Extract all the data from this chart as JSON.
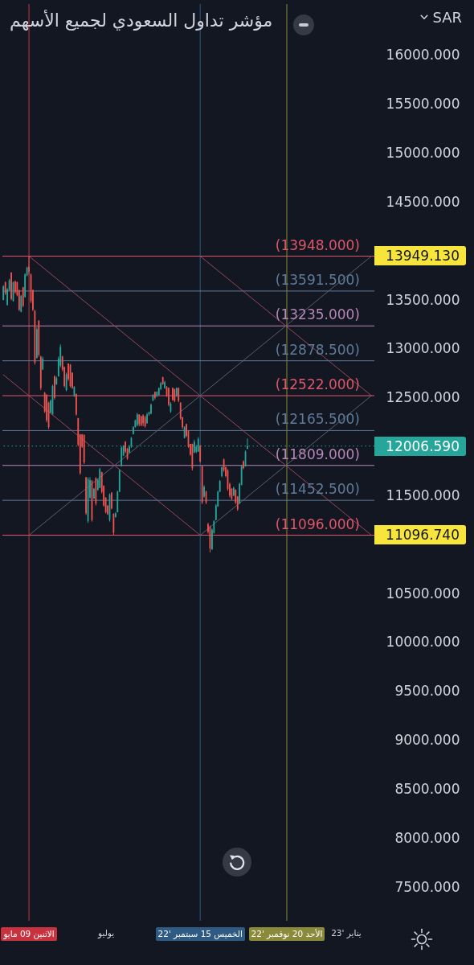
{
  "chart_data": {
    "type": "candlestick",
    "title": "مؤشر تداول السعودي لجميع الأسهم",
    "ylabel": "SAR",
    "categories": [
      null,
      null,
      null,
      null,
      null,
      null,
      null,
      null,
      null,
      null,
      null,
      null,
      null,
      "الاثنين 09 مايو",
      null,
      null,
      null,
      null,
      null,
      null,
      null,
      null,
      null,
      null,
      null,
      null,
      null,
      null,
      null,
      null,
      null,
      null,
      null,
      null,
      null,
      null,
      null,
      null,
      null,
      null,
      null,
      null,
      null,
      null,
      null,
      null,
      null,
      null,
      null,
      null,
      null,
      null,
      "يوليو",
      null,
      null,
      null,
      null,
      null,
      null,
      null,
      null,
      null,
      null,
      null,
      null,
      null,
      null,
      null,
      null,
      null,
      null,
      null,
      null,
      null,
      null,
      null,
      null,
      null,
      null,
      null,
      null,
      null,
      null,
      null,
      null,
      null,
      null,
      null,
      null,
      null,
      null,
      null,
      null,
      null,
      null,
      null,
      null,
      null,
      null,
      null,
      "الخميس 15 سبتمبر '22",
      null,
      null,
      null,
      null,
      null,
      null,
      null,
      null,
      null,
      null,
      null,
      null,
      null,
      null,
      null,
      null,
      null,
      null,
      null,
      null,
      null,
      null,
      null,
      null,
      null,
      null,
      null,
      null,
      null,
      null,
      null,
      null,
      null,
      null,
      null,
      null,
      null,
      null,
      null,
      null,
      null,
      null,
      null,
      "الأحد 20 نوفمبر '22",
      null,
      null,
      null,
      null,
      null,
      null,
      null,
      null,
      null,
      null,
      null,
      null,
      null,
      null,
      null,
      null,
      null,
      null,
      null,
      null,
      null,
      null,
      null,
      null,
      null,
      null,
      null,
      null,
      null,
      "يناير '23",
      null,
      null,
      null,
      null,
      null,
      null,
      null,
      null,
      null,
      null,
      null,
      null,
      null,
      null
    ],
    "ohlc": [
      [
        13500,
        13650,
        13497,
        13640
      ],
      [
        13680,
        13689,
        13552,
        13570
      ],
      [
        13450,
        13620,
        13442,
        13610
      ],
      [
        13600,
        13716,
        13593,
        13700
      ],
      [
        13780,
        13785,
        13497,
        13510
      ],
      [
        13490,
        13689,
        13483,
        13680
      ],
      [
        13690,
        13700,
        13566,
        13580
      ],
      [
        13680,
        13689,
        13538,
        13550
      ],
      [
        13600,
        13607,
        13387,
        13400
      ],
      [
        13380,
        13552,
        13374,
        13540
      ],
      [
        13630,
        13634,
        13428,
        13440
      ],
      [
        13530,
        13771,
        13524,
        13760
      ],
      [
        13750,
        13840,
        13744,
        13830
      ],
      [
        13840,
        13949.13,
        13760,
        13790
      ],
      [
        13760,
        13771,
        13470,
        13490
      ],
      [
        13600,
        13607,
        13387,
        13400
      ],
      [
        13387,
        13400,
        12839,
        12860
      ],
      [
        12910,
        13223,
        12900,
        13200
      ],
      [
        13290,
        13292,
        12921,
        12940
      ],
      [
        12921,
        12930,
        12579,
        12600
      ],
      [
        12790,
        12921,
        12784,
        12900
      ],
      [
        12551,
        12560,
        12346,
        12360
      ],
      [
        12530,
        12538,
        12250,
        12270
      ],
      [
        12450,
        12460,
        12181,
        12200
      ],
      [
        12350,
        12483,
        12346,
        12470
      ],
      [
        12330,
        12634,
        12330,
        12620
      ],
      [
        12720,
        12730,
        12483,
        12500
      ],
      [
        12640,
        12716,
        12633,
        12700
      ],
      [
        12720,
        12921,
        12716,
        12900
      ],
      [
        12830,
        13045,
        12812,
        13020
      ],
      [
        12921,
        12930,
        12771,
        12790
      ],
      [
        12812,
        12820,
        12606,
        12620
      ],
      [
        12580,
        12757,
        12565,
        12740
      ],
      [
        12850,
        12853,
        12675,
        12690
      ],
      [
        12839,
        12845,
        12606,
        12620
      ],
      [
        12757,
        12760,
        12592,
        12600
      ],
      [
        12520,
        12620,
        12510,
        12610
      ],
      [
        12538,
        12545,
        12318,
        12330
      ],
      [
        12291,
        12295,
        12003,
        12020
      ],
      [
        12126,
        12130,
        11715,
        11730
      ],
      [
        12126,
        12130,
        11989,
        12000
      ],
      [
        12120,
        12126,
        11825,
        11840
      ],
      [
        11688,
        11690,
        11304,
        11320
      ],
      [
        11240,
        11688,
        11222,
        11670
      ],
      [
        11480,
        11688,
        11469,
        11660
      ],
      [
        11650,
        11660,
        11235,
        11250
      ],
      [
        11470,
        11578,
        11469,
        11570
      ],
      [
        11680,
        11688,
        11400,
        11420
      ],
      [
        11560,
        11675,
        11550,
        11660
      ],
      [
        11580,
        11784,
        11578,
        11770
      ],
      [
        11740,
        11743,
        11523,
        11540
      ],
      [
        11600,
        11606,
        11387,
        11400
      ],
      [
        11480,
        11483,
        11318,
        11330
      ],
      [
        11400,
        11400,
        11304,
        11310
      ],
      [
        11250,
        11523,
        11235,
        11510
      ],
      [
        11530,
        11537,
        11360,
        11370
      ],
      [
        11315,
        11320,
        11096.74,
        11120
      ],
      [
        11280,
        11332,
        11277,
        11320
      ],
      [
        11330,
        11551,
        11330,
        11540
      ],
      [
        11540,
        11770,
        11537,
        11760
      ],
      [
        11800,
        12003,
        11798,
        11990
      ],
      [
        11910,
        12017,
        11907,
        12010
      ],
      [
        12050,
        12058,
        11935,
        11950
      ],
      [
        11980,
        11989,
        11866,
        11880
      ],
      [
        11940,
        12017,
        11935,
        12000
      ],
      [
        12000,
        12099,
        11989,
        12090
      ],
      [
        12130,
        12209,
        12126,
        12200
      ],
      [
        12200,
        12277,
        12195,
        12270
      ],
      [
        12220,
        12346,
        12209,
        12330
      ],
      [
        12330,
        12332,
        12209,
        12230
      ],
      [
        12310,
        12318,
        12209,
        12220
      ],
      [
        12320,
        12332,
        12209,
        12240
      ],
      [
        12300,
        12318,
        12195,
        12210
      ],
      [
        12240,
        12346,
        12236,
        12330
      ],
      [
        12330,
        12360,
        12318,
        12350
      ],
      [
        12340,
        12442,
        12332,
        12430
      ],
      [
        12470,
        12538,
        12469,
        12530
      ],
      [
        12560,
        12565,
        12483,
        12500
      ],
      [
        12520,
        12565,
        12510,
        12560
      ],
      [
        12530,
        12606,
        12524,
        12600
      ],
      [
        12590,
        12661,
        12579,
        12650
      ],
      [
        12710,
        12716,
        12633,
        12640
      ],
      [
        12600,
        12675,
        12592,
        12660
      ],
      [
        12610,
        12620,
        12510,
        12520
      ],
      [
        12600,
        12606,
        12414,
        12430
      ],
      [
        12360,
        12455,
        12346,
        12440
      ],
      [
        12600,
        12606,
        12469,
        12480
      ],
      [
        12590,
        12592,
        12455,
        12470
      ],
      [
        12520,
        12606,
        12510,
        12600
      ],
      [
        12600,
        12606,
        12455,
        12470
      ],
      [
        12450,
        12455,
        12277,
        12290
      ],
      [
        12300,
        12305,
        12181,
        12200
      ],
      [
        12090,
        12209,
        12085,
        12200
      ],
      [
        12230,
        12236,
        12099,
        12110
      ],
      [
        12160,
        12168,
        11989,
        12000
      ],
      [
        12030,
        12030,
        11907,
        11920
      ],
      [
        12030,
        12031,
        11757,
        11780
      ],
      [
        11940,
        12072,
        11935,
        12050
      ],
      [
        11950,
        12017,
        11935,
        12000
      ],
      [
        11950,
        12099,
        11948,
        12080
      ],
      [
        12010,
        12017,
        11839,
        11850
      ],
      [
        11800,
        11811,
        11414,
        11430
      ],
      [
        11490,
        11606,
        11480,
        11590
      ],
      [
        11540,
        11551,
        11414,
        11430
      ],
      [
        11210,
        11222,
        11112,
        11130
      ],
      [
        11180,
        11195,
        10920,
        10960
      ],
      [
        10950,
        11167,
        10948,
        11150
      ],
      [
        11120,
        11249,
        11112,
        11240
      ],
      [
        11250,
        11414,
        11249,
        11400
      ],
      [
        11390,
        11551,
        11386,
        11540
      ],
      [
        11540,
        11660,
        11537,
        11650
      ],
      [
        11700,
        11798,
        11688,
        11790
      ],
      [
        11870,
        11880,
        11743,
        11760
      ],
      [
        11790,
        11798,
        11688,
        11700
      ],
      [
        11760,
        11770,
        11551,
        11570
      ],
      [
        11620,
        11633,
        11482,
        11500
      ],
      [
        11570,
        11578,
        11455,
        11470
      ],
      [
        11500,
        11592,
        11496,
        11580
      ],
      [
        11560,
        11565,
        11414,
        11430
      ],
      [
        11490,
        11496,
        11345,
        11360
      ],
      [
        11420,
        11633,
        11414,
        11620
      ],
      [
        11610,
        11811,
        11606,
        11800
      ],
      [
        11850,
        11860,
        11770,
        11780
      ],
      [
        11800,
        11962,
        11797,
        11950
      ],
      [
        11980,
        12085,
        11975,
        12006.59
      ],
      null,
      null,
      null,
      null,
      null,
      null,
      null,
      null,
      null,
      null,
      null,
      null,
      null,
      null,
      null,
      null,
      null,
      null,
      null,
      null,
      null,
      null,
      null,
      null,
      null,
      null,
      null,
      null,
      null,
      null,
      null,
      null,
      null,
      null,
      null,
      null,
      null,
      null,
      null,
      null,
      null,
      null,
      null,
      null,
      null,
      null,
      null,
      null,
      null,
      null,
      null,
      null,
      null,
      null,
      null,
      null,
      null,
      null,
      null,
      null,
      null,
      null,
      null,
      null
    ],
    "ylim": [
      7155,
      16525
    ],
    "yticks": [
      {
        "value": 16000,
        "label": "16000.000"
      },
      {
        "value": 15500,
        "label": "15500.000"
      },
      {
        "value": 15000,
        "label": "15000.000"
      },
      {
        "value": 14500,
        "label": "14500.000"
      },
      {
        "value": 13949.13,
        "label": "13949.130"
      },
      {
        "value": 13500,
        "label": "13500.000"
      },
      {
        "value": 13000,
        "label": "13000.000"
      },
      {
        "value": 12500,
        "label": "12500.000"
      },
      {
        "value": 12006.59,
        "label": "12006.590"
      },
      {
        "value": 11500,
        "label": "11500.000"
      },
      {
        "value": 11096.74,
        "label": "11096.740"
      },
      {
        "value": 10500,
        "label": "10500.000"
      },
      {
        "value": 10000,
        "label": "10000.000"
      },
      {
        "value": 9500,
        "label": "9500.000"
      },
      {
        "value": 9000,
        "label": "9000.000"
      },
      {
        "value": 8500,
        "label": "8500.000"
      },
      {
        "value": 8000,
        "label": "8000.000"
      },
      {
        "value": 7500,
        "label": "7500.000"
      }
    ],
    "series": [
      {
        "type": "line",
        "color": "#9e4a60",
        "values": [
          null,
          null,
          null,
          null,
          null,
          null,
          null,
          null,
          null,
          null,
          null,
          null,
          null,
          13948,
          13932,
          13915,
          13899,
          13882,
          13866,
          13850,
          13833,
          13817,
          13800,
          13784,
          13768,
          13751,
          13735,
          13719,
          13702,
          13686,
          13669,
          13653,
          13637,
          13620,
          13604,
          13587,
          13571,
          13555,
          13538,
          13522,
          13505,
          13489,
          13473,
          13456,
          13440,
          13423,
          13407,
          13391,
          13374,
          13358,
          13342,
          13325,
          13309,
          13292,
          13276,
          13260,
          13243,
          13227,
          13210,
          13194,
          13178,
          13161,
          13145,
          13128,
          13112,
          13096,
          13079,
          13063,
          13047,
          13030,
          13014,
          12997,
          12981,
          12965,
          12948,
          12932,
          12915,
          12899,
          12883,
          12866,
          12850,
          12833,
          12817,
          12801,
          12784,
          12768,
          12751,
          12735,
          12719,
          12702,
          12686,
          12670,
          12653,
          12637,
          12620,
          12604,
          12588,
          12571,
          12555,
          12538,
          12522,
          12506,
          12489,
          12473,
          12456,
          12440,
          12424,
          12407,
          12391,
          12374,
          12358,
          12342,
          12325,
          12309,
          12293,
          12276,
          12260,
          12243,
          12227,
          12211,
          12194,
          12178,
          12161,
          12145,
          12129,
          12112,
          12096,
          12079,
          12063,
          12047,
          12030,
          12014,
          11997,
          11981,
          11965,
          11948,
          11932,
          11916,
          11899,
          11883,
          11866,
          11850,
          11834,
          11817,
          11801,
          11784,
          11768,
          11752,
          11735,
          11719,
          11702,
          11686,
          11670,
          11653,
          11637,
          11621,
          11604,
          11588,
          11571,
          11555,
          11539,
          11522,
          11506,
          11489,
          11473,
          11457,
          11440,
          11424,
          11407,
          11391,
          11375,
          11358,
          11342,
          11325,
          11309,
          11293,
          11276,
          11260,
          11244,
          11227,
          11211,
          11194,
          11178,
          11162,
          11145,
          11129,
          11112,
          11096,
          null
        ]
      },
      {
        "type": "line",
        "color": "#5c6272",
        "values": [
          null,
          null,
          null,
          null,
          null,
          null,
          null,
          null,
          null,
          null,
          null,
          null,
          null,
          11096,
          11112,
          11129,
          11145,
          11162,
          11178,
          11194,
          11211,
          11227,
          11244,
          11260,
          11276,
          11293,
          11309,
          11325,
          11342,
          11358,
          11375,
          11391,
          11407,
          11424,
          11440,
          11457,
          11473,
          11489,
          11506,
          11522,
          11539,
          11555,
          11571,
          11588,
          11604,
          11621,
          11637,
          11653,
          11670,
          11686,
          11702,
          11719,
          11735,
          11752,
          11768,
          11784,
          11801,
          11817,
          11834,
          11850,
          11866,
          11883,
          11899,
          11916,
          11932,
          11948,
          11965,
          11981,
          11997,
          12014,
          12030,
          12047,
          12063,
          12079,
          12096,
          12112,
          12129,
          12145,
          12161,
          12178,
          12194,
          12211,
          12227,
          12243,
          12260,
          12276,
          12293,
          12309,
          12325,
          12342,
          12358,
          12374,
          12391,
          12407,
          12424,
          12440,
          12456,
          12473,
          12489,
          12506,
          12522,
          12538,
          12555,
          12571,
          12588,
          12604,
          12620,
          12637,
          12653,
          12670,
          12686,
          12702,
          12719,
          12735,
          12751,
          12768,
          12784,
          12801,
          12817,
          12833,
          12850,
          12866,
          12883,
          12899,
          12915,
          12932,
          12948,
          12965,
          12981,
          12997,
          13014,
          13030,
          13047,
          13063,
          13079,
          13096,
          13112,
          13128,
          13145,
          13161,
          13178,
          13194,
          13210,
          13227,
          13243,
          13260,
          13276,
          13292,
          13309,
          13325,
          13342,
          13358,
          13374,
          13391,
          13407,
          13423,
          13440,
          13456,
          13473,
          13489,
          13505,
          13522,
          13538,
          13555,
          13571,
          13587,
          13604,
          13620,
          13637,
          13653,
          13669,
          13686,
          13702,
          13719,
          13735,
          13751,
          13768,
          13784,
          13800,
          13817,
          13833,
          13850,
          13866,
          13882,
          13899,
          13915,
          13932,
          13948,
          null
        ]
      },
      {
        "type": "line",
        "color": "#9e4a60",
        "values": [
          12735,
          12719,
          12702,
          12686,
          12669,
          12653,
          12637,
          12620,
          12604,
          12587,
          12571,
          12555,
          12538,
          12522,
          12506,
          12489,
          12473,
          12456,
          12440,
          12424,
          12407,
          12391,
          12374,
          12358,
          12342,
          12325,
          12309,
          12292,
          12276,
          12260,
          12243,
          12227,
          12210,
          12194,
          12178,
          12161,
          12145,
          12129,
          12112,
          12096,
          12079,
          12063,
          12047,
          12030,
          12014,
          11997,
          11981,
          11965,
          11948,
          11932,
          11915,
          11899,
          11883,
          11866,
          11850,
          11834,
          11817,
          11801,
          11784,
          11768,
          11752,
          11735,
          11719,
          11702,
          11686,
          11670,
          11653,
          11637,
          11620,
          11604,
          11588,
          11571,
          11555,
          11538,
          11522,
          11506,
          11489,
          11473,
          11457,
          11440,
          11424,
          11407,
          11391,
          11375,
          11358,
          11342,
          11325,
          11309,
          11293,
          11276,
          11260,
          11243,
          11227,
          11211,
          11194,
          11178,
          11161,
          11145,
          11129,
          11112,
          11096,
          null,
          null,
          null,
          null,
          null,
          null,
          null,
          null,
          null,
          null,
          null,
          null,
          null,
          null,
          null,
          null,
          null,
          null,
          null,
          null,
          null,
          null,
          null,
          null,
          null,
          null,
          null,
          null,
          null,
          null,
          null,
          null,
          null,
          null,
          null,
          null,
          null,
          null,
          null,
          null,
          null,
          null,
          null,
          null,
          null,
          null,
          null,
          null,
          null,
          null,
          null,
          null,
          null,
          null,
          null,
          null,
          null,
          null,
          null,
          null,
          null,
          null,
          null,
          null,
          null,
          null,
          null,
          null,
          null,
          null,
          null,
          null,
          null,
          null,
          null,
          null,
          null,
          null,
          null,
          null,
          null,
          null,
          null,
          null,
          null,
          null,
          null,
          null
        ]
      },
      {
        "type": "line",
        "color": "#5c6272",
        "values": [
          null,
          null,
          null,
          null,
          null,
          null,
          null,
          null,
          null,
          null,
          null,
          null,
          null,
          null,
          null,
          null,
          null,
          null,
          null,
          null,
          null,
          null,
          null,
          null,
          null,
          null,
          null,
          null,
          null,
          null,
          null,
          null,
          null,
          null,
          null,
          null,
          null,
          null,
          null,
          null,
          null,
          null,
          null,
          null,
          null,
          null,
          null,
          null,
          null,
          null,
          null,
          null,
          null,
          null,
          null,
          null,
          null,
          null,
          null,
          null,
          null,
          null,
          null,
          null,
          null,
          null,
          null,
          null,
          null,
          null,
          null,
          null,
          null,
          null,
          null,
          null,
          null,
          null,
          null,
          null,
          null,
          null,
          null,
          null,
          null,
          null,
          null,
          null,
          null,
          null,
          null,
          null,
          null,
          null,
          null,
          null,
          null,
          null,
          null,
          null,
          11096,
          11112,
          11129,
          11145,
          11162,
          11178,
          11194,
          11211,
          11227,
          11244,
          11260,
          11276,
          11293,
          11309,
          11325,
          11342,
          11358,
          11375,
          11391,
          11407,
          11424,
          11440,
          11457,
          11473,
          11489,
          11506,
          11522,
          11539,
          11555,
          11571,
          11588,
          11604,
          11621,
          11637,
          11653,
          11670,
          11686,
          11702,
          11719,
          11735,
          11752,
          11768,
          11784,
          11801,
          11817,
          11834,
          11850,
          11866,
          11883,
          11899,
          11916,
          11932,
          11948,
          11965,
          11981,
          11997,
          12014,
          12030,
          12047,
          12063,
          12079,
          12096,
          12112,
          12129,
          12145,
          12161,
          12178,
          12194,
          12211,
          12227,
          12243,
          12260,
          12276,
          12293,
          12309,
          12325,
          12342,
          12358,
          12374,
          12391,
          12407,
          12424,
          12440,
          12456,
          12473,
          12489,
          12506,
          12522,
          null
        ]
      },
      {
        "type": "line",
        "color": "#9e4a60",
        "values": [
          null,
          null,
          null,
          null,
          null,
          null,
          null,
          null,
          null,
          null,
          null,
          null,
          null,
          null,
          null,
          null,
          null,
          null,
          null,
          null,
          null,
          null,
          null,
          null,
          null,
          null,
          null,
          null,
          null,
          null,
          null,
          null,
          null,
          null,
          null,
          null,
          null,
          null,
          null,
          null,
          null,
          null,
          null,
          null,
          null,
          null,
          null,
          null,
          null,
          null,
          null,
          null,
          null,
          null,
          null,
          null,
          null,
          null,
          null,
          null,
          null,
          null,
          null,
          null,
          null,
          null,
          null,
          null,
          null,
          null,
          null,
          null,
          null,
          null,
          null,
          null,
          null,
          null,
          null,
          null,
          null,
          null,
          null,
          null,
          null,
          null,
          null,
          null,
          null,
          null,
          null,
          null,
          null,
          null,
          null,
          null,
          null,
          null,
          null,
          null,
          13948,
          13932,
          13915,
          13899,
          13882,
          13866,
          13850,
          13833,
          13817,
          13800,
          13784,
          13768,
          13751,
          13735,
          13719,
          13702,
          13686,
          13669,
          13653,
          13637,
          13620,
          13604,
          13587,
          13571,
          13555,
          13538,
          13522,
          13505,
          13489,
          13473,
          13456,
          13440,
          13423,
          13407,
          13391,
          13374,
          13358,
          13342,
          13325,
          13309,
          13292,
          13276,
          13260,
          13243,
          13227,
          13210,
          13194,
          13178,
          13161,
          13145,
          13128,
          13112,
          13096,
          13079,
          13063,
          13047,
          13030,
          13014,
          12997,
          12981,
          12965,
          12948,
          12932,
          12915,
          12899,
          12883,
          12866,
          12850,
          12833,
          12817,
          12801,
          12784,
          12768,
          12751,
          12735,
          12719,
          12702,
          12686,
          12670,
          12653,
          12637,
          12620,
          12604,
          12588,
          12571,
          12555,
          12538,
          12522,
          null
        ]
      }
    ],
    "ref_lines": [
      {
        "axis": "x",
        "value": "الاثنين 09 مايو",
        "color": "#c8323f"
      },
      {
        "axis": "x",
        "value": "الخميس 15 سبتمبر '22",
        "color": "#2f5a84"
      },
      {
        "axis": "x",
        "value": "الأحد 20 نوفمبر '22",
        "color": "#8a8a3a"
      },
      {
        "axis": "y",
        "value": 13948,
        "label": "(13948.000)",
        "color": "#e0566b"
      },
      {
        "axis": "y",
        "value": 13591.5,
        "label": "(13591.500)",
        "color": "#5e7b99"
      },
      {
        "axis": "y",
        "value": 13235,
        "label": "(13235.000)",
        "color": "#b887b8"
      },
      {
        "axis": "y",
        "value": 12878.5,
        "label": "(12878.500)",
        "color": "#5e7b99"
      },
      {
        "axis": "y",
        "value": 12522,
        "label": "(12522.000)",
        "color": "#e0566b"
      },
      {
        "axis": "y",
        "value": 12165.5,
        "label": "(12165.500)",
        "color": "#5e7b99"
      },
      {
        "axis": "y",
        "value": 11809,
        "label": "(11809.000)",
        "color": "#b887b8"
      },
      {
        "axis": "y",
        "value": 11452.5,
        "label": "(11452.500)",
        "color": "#5e7b99"
      },
      {
        "axis": "y",
        "value": 11096,
        "label": "(11096.000)",
        "color": "#e0566b"
      },
      {
        "axis": "y",
        "value": 12006.59,
        "color": "#26a69a",
        "line_style": "dotted"
      }
    ]
  }
}
